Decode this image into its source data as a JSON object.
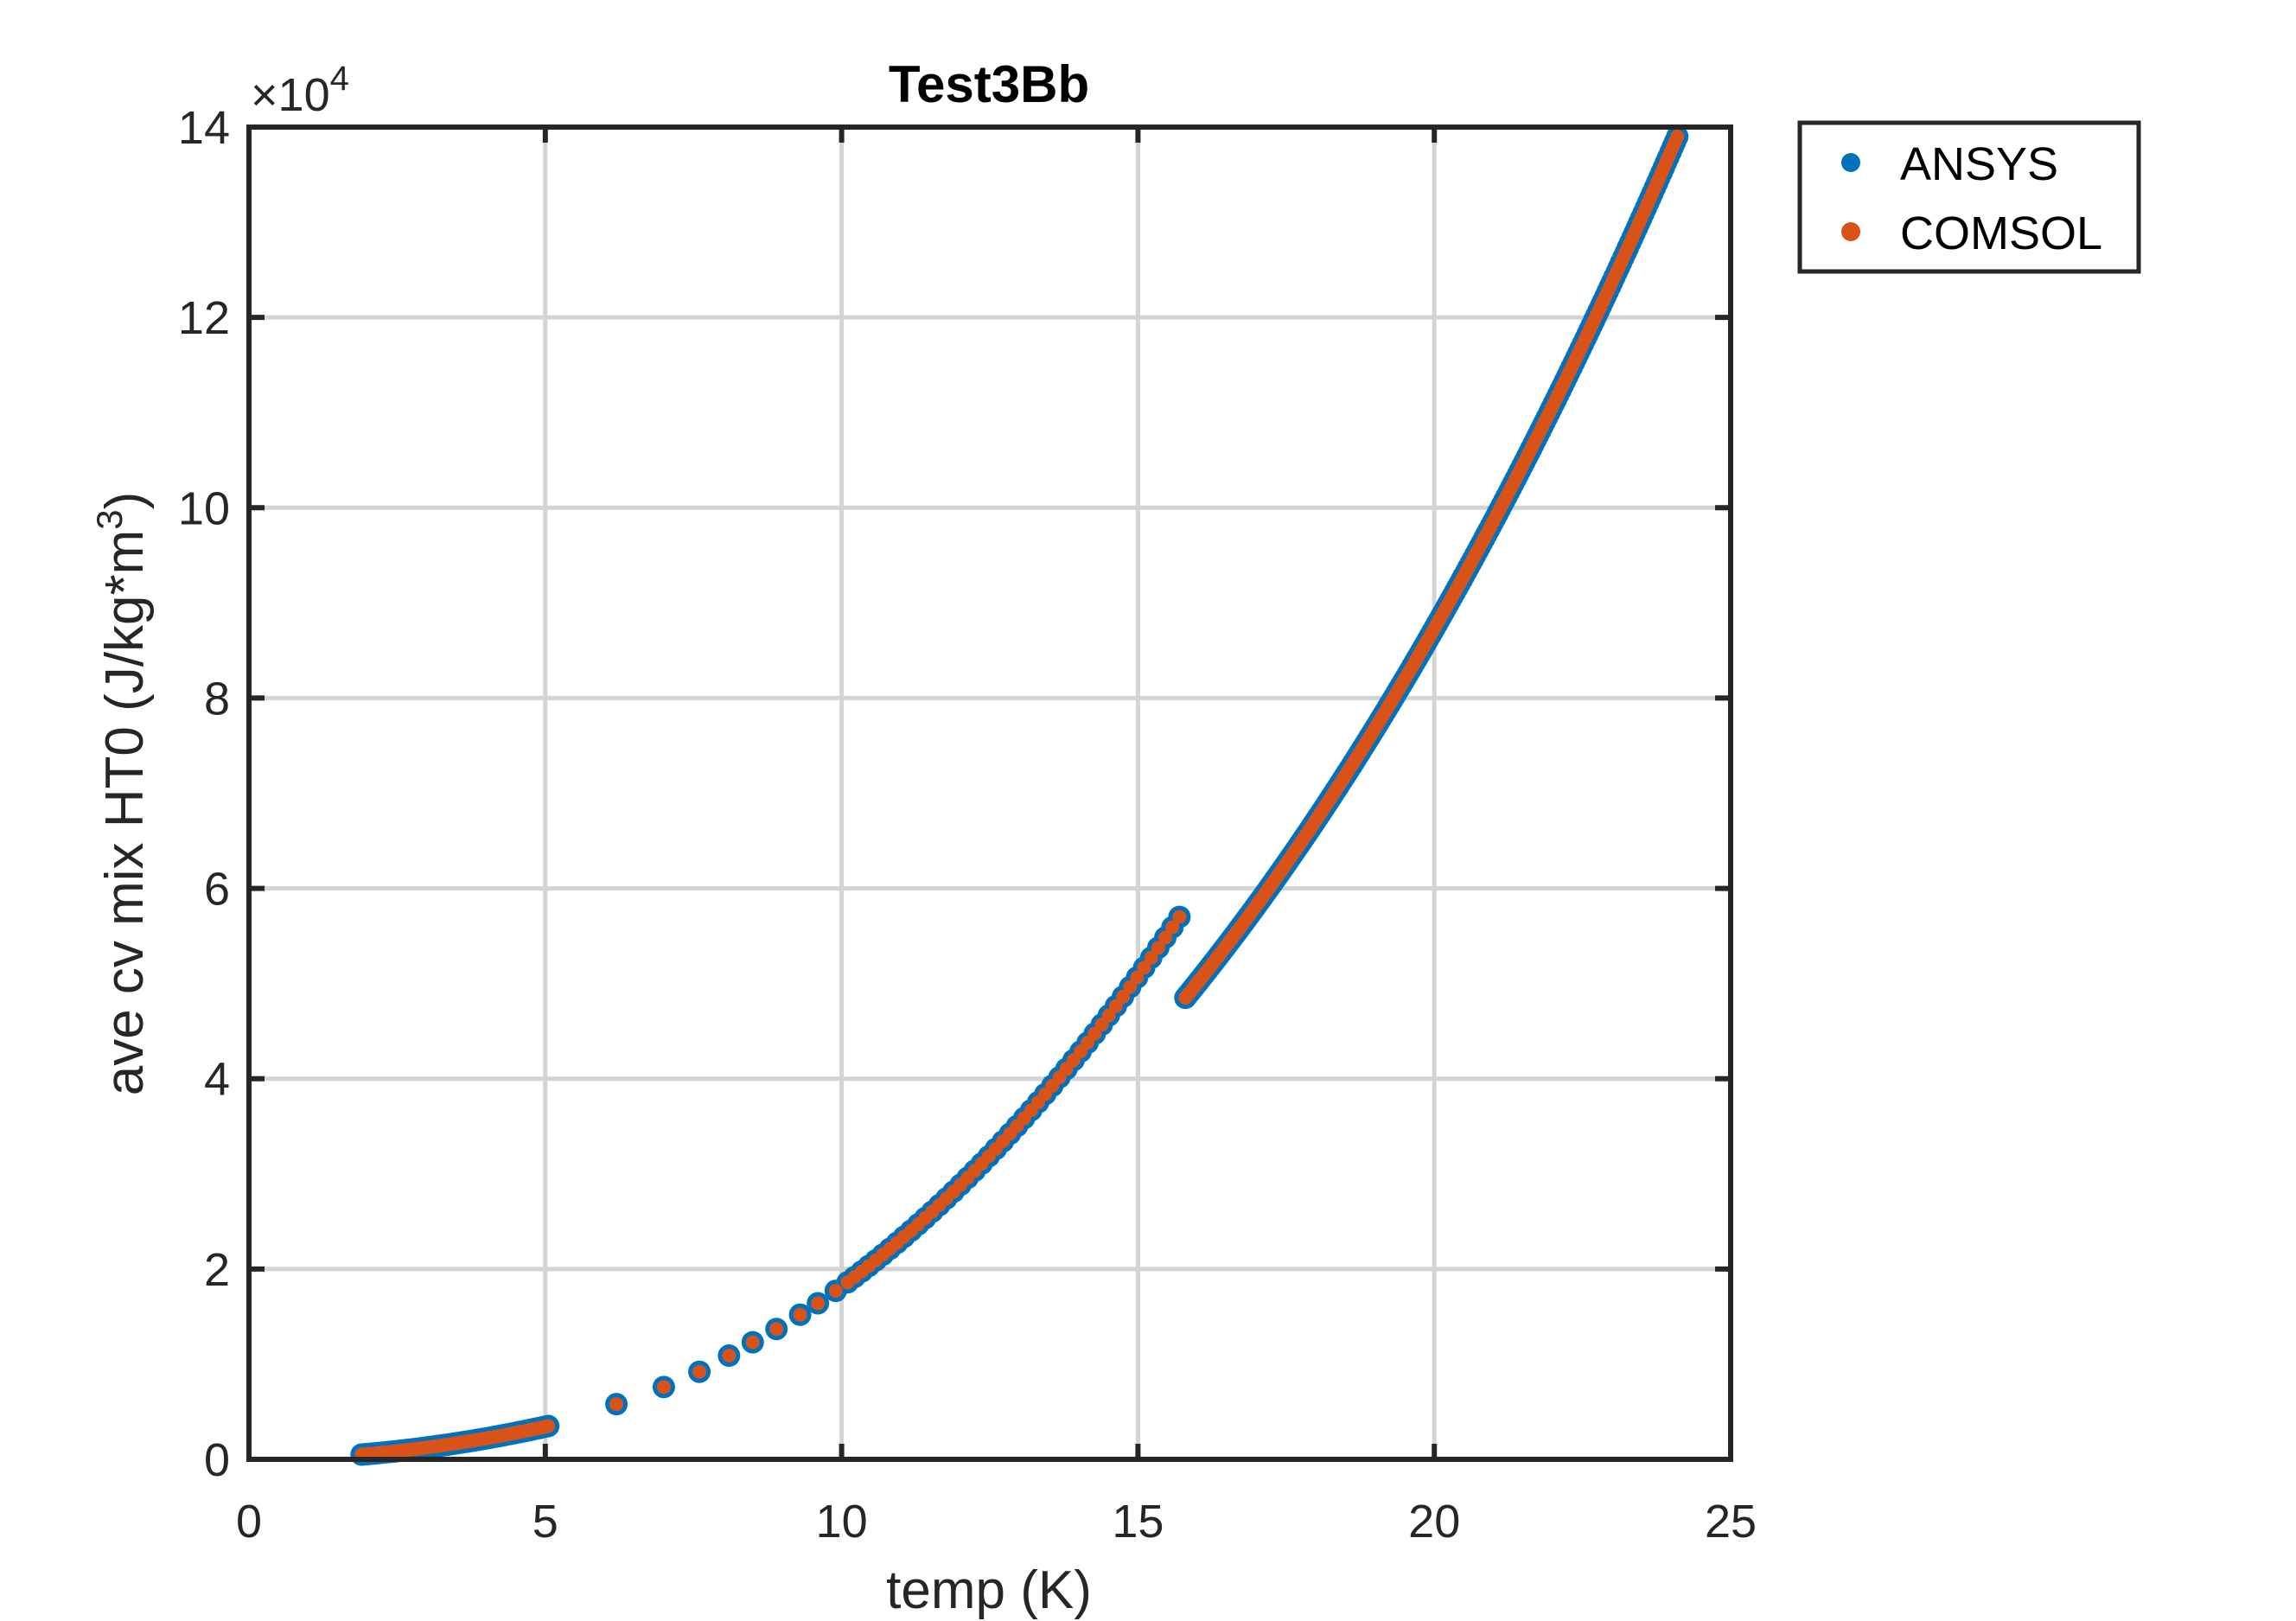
{
  "chart_data": {
    "type": "scatter",
    "title": "Test3Bb",
    "xlabel": "temp (K)",
    "ylabel_main": "ave cv mix HT0 (J/kg*m",
    "ylabel_sup": "3",
    "ylabel_close": ")",
    "y_exponent_prefix": "×10",
    "y_exponent_power": "4",
    "xlim": [
      0,
      25
    ],
    "ylim": [
      0,
      140000
    ],
    "x_ticks": [
      0,
      5,
      10,
      15,
      20,
      25
    ],
    "x_tick_labels": [
      "0",
      "5",
      "10",
      "15",
      "20",
      "25"
    ],
    "y_ticks": [
      0,
      20000,
      40000,
      60000,
      80000,
      100000,
      120000,
      140000
    ],
    "y_tick_labels": [
      "0",
      "2",
      "4",
      "6",
      "8",
      "10",
      "12",
      "14"
    ],
    "grid": true,
    "legend_position": "outside-top-right",
    "series": [
      {
        "name": "ANSYS",
        "color": "#0072BD",
        "segments": [
          {
            "kind": "power",
            "x_start": 1.9,
            "x_end": 5.05,
            "count": 60,
            "anchors": [
              [
                1.9,
                500
              ],
              [
                5.05,
                3500
              ]
            ]
          },
          {
            "kind": "list",
            "points": [
              [
                6.2,
                5800
              ],
              [
                7.0,
                7600
              ],
              [
                7.6,
                9200
              ],
              [
                8.1,
                10900
              ],
              [
                8.5,
                12300
              ],
              [
                8.9,
                13700
              ],
              [
                9.3,
                15200
              ],
              [
                9.6,
                16400
              ],
              [
                9.9,
                17700
              ]
            ]
          },
          {
            "kind": "power",
            "x_start": 10.1,
            "x_end": 15.7,
            "count": 48,
            "anchors": [
              [
                10.1,
                18600
              ],
              [
                15.7,
                57000
              ]
            ]
          },
          {
            "kind": "power",
            "x_start": 15.8,
            "x_end": 24.1,
            "count": 220,
            "anchors": [
              [
                15.8,
                48500
              ],
              [
                24.1,
                139000
              ]
            ]
          }
        ]
      },
      {
        "name": "COMSOL",
        "color": "#D95319",
        "segments": [
          {
            "kind": "power",
            "x_start": 1.9,
            "x_end": 5.05,
            "count": 60,
            "anchors": [
              [
                1.9,
                500
              ],
              [
                5.05,
                3500
              ]
            ]
          },
          {
            "kind": "list",
            "points": [
              [
                6.2,
                5800
              ],
              [
                7.0,
                7600
              ],
              [
                7.6,
                9200
              ],
              [
                8.1,
                10900
              ],
              [
                8.5,
                12300
              ],
              [
                8.9,
                13700
              ],
              [
                9.3,
                15200
              ],
              [
                9.6,
                16400
              ],
              [
                9.9,
                17700
              ]
            ]
          },
          {
            "kind": "power",
            "x_start": 10.1,
            "x_end": 15.7,
            "count": 48,
            "anchors": [
              [
                10.1,
                18600
              ],
              [
                15.7,
                57000
              ]
            ]
          },
          {
            "kind": "power",
            "x_start": 15.8,
            "x_end": 24.1,
            "count": 220,
            "anchors": [
              [
                15.8,
                48500
              ],
              [
                24.1,
                139000
              ]
            ]
          }
        ]
      }
    ]
  }
}
